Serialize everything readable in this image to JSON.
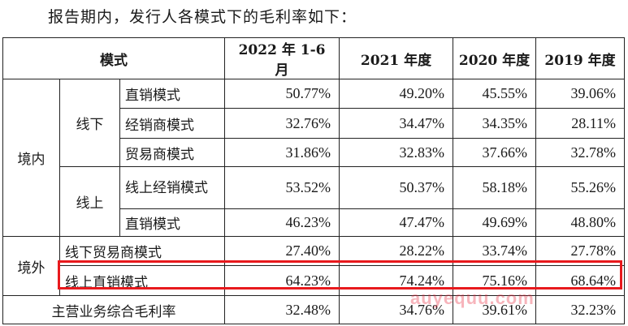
{
  "intro": "报告期内，发行人各模式下的毛利率如下：",
  "headers": [
    "模式",
    "2022 年 1-6 月",
    "2021 年度",
    "2020 年度",
    "2019 年度"
  ],
  "groups": {
    "domestic": "境内",
    "offline": "线下",
    "online": "线上",
    "overseas": "境外"
  },
  "rows": {
    "d_off_direct": {
      "label": "直销模式",
      "values": [
        "50.77%",
        "49.20%",
        "45.55%",
        "39.06%"
      ]
    },
    "d_off_dealer": {
      "label": "经销商模式",
      "values": [
        "32.76%",
        "34.47%",
        "34.35%",
        "28.11%"
      ]
    },
    "d_off_trader": {
      "label": "贸易商模式",
      "values": [
        "31.86%",
        "32.83%",
        "37.66%",
        "32.78%"
      ]
    },
    "d_on_dealer": {
      "label": "线上经销模式",
      "values": [
        "53.52%",
        "50.37%",
        "58.18%",
        "55.26%"
      ]
    },
    "d_on_direct": {
      "label": "直销模式",
      "values": [
        "46.23%",
        "47.47%",
        "49.69%",
        "48.80%"
      ]
    },
    "o_off_trader": {
      "label": "线下贸易商模式",
      "values": [
        "27.40%",
        "28.22%",
        "33.74%",
        "27.78%"
      ]
    },
    "o_on_direct": {
      "label": "线上直销模式",
      "values": [
        "64.23%",
        "74.24%",
        "75.16%",
        "68.64%"
      ]
    },
    "total": {
      "label": "主营业务综合毛利率",
      "values": [
        "32.48%",
        "34.76%",
        "39.61%",
        "32.23%"
      ]
    }
  },
  "watermark": "auyequu.com",
  "highlight_color": "#e8191d"
}
